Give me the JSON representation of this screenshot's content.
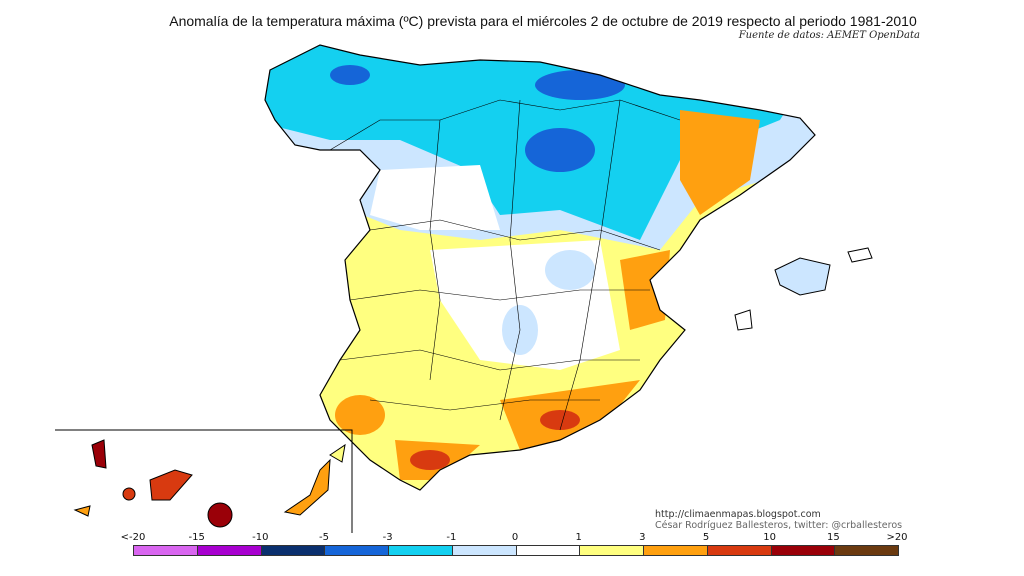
{
  "title": "Anomalía de la temperatura máxima (ºC) prevista para el miércoles 2 de octubre de 2019 respecto al periodo 1981-2010",
  "source": "Fuente de datos: AEMET OpenData",
  "credits": {
    "url": "http://climaenmapas.blogspot.com",
    "author": "César Rodríguez Ballesteros, twitter: @crballesteros"
  },
  "legend": {
    "ticks": [
      "<-20",
      "-15",
      "-10",
      "-5",
      "-3",
      "-1",
      "0",
      "1",
      "3",
      "5",
      "10",
      "15",
      ">20"
    ],
    "colors": [
      "#d966f0",
      "#a800d0",
      "#0a2f6e",
      "#1565d8",
      "#14d0f0",
      "#cce6ff",
      "#ffffff",
      "#ffff80",
      "#ffa010",
      "#d83a10",
      "#9a0008",
      "#6b3a10"
    ]
  }
}
